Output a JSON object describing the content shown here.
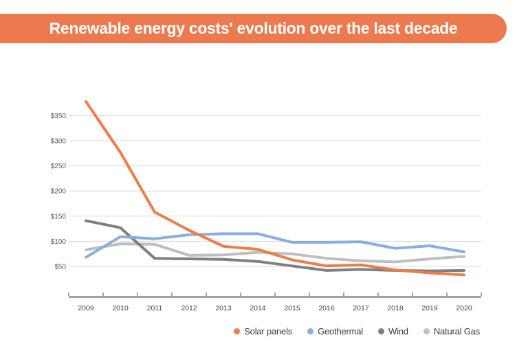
{
  "banner": {
    "title": "Renewable energy costs' evolution over the last decade"
  },
  "colors": {
    "banner_orange": "#ED7A4E",
    "solar": "#ED7D49",
    "geothermal": "#8AAEDE",
    "wind": "#7F7F7F",
    "natural_gas": "#BFBFBF",
    "gridline": "#D9D9D9",
    "axis": "#A3A3A3"
  },
  "chart_data": {
    "type": "line",
    "title": "Renewable energy costs' evolution over the last decade",
    "x": [
      "2009",
      "2010",
      "2011",
      "2012",
      "2013",
      "2014",
      "2015",
      "2016",
      "2017",
      "2018",
      "2019",
      "2020"
    ],
    "y_axis": {
      "tick_labels": [
        "$350",
        "$300",
        "$250",
        "$200",
        "$150",
        "$100",
        "$50"
      ],
      "tick_values": [
        350,
        300,
        250,
        200,
        150,
        100,
        50
      ],
      "unit": "USD"
    },
    "ylim": [
      0,
      400
    ],
    "grid": true,
    "legend_position": "bottom-right",
    "series": [
      {
        "name": "Solar panels",
        "color": "#ED7D49",
        "values": [
          378,
          277,
          158,
          122,
          90,
          84,
          63,
          51,
          53,
          43,
          37,
          33
        ]
      },
      {
        "name": "Geothermal",
        "color": "#8AAEDE",
        "values": [
          68,
          109,
          105,
          113,
          115,
          115,
          98,
          98,
          99,
          86,
          91,
          79
        ]
      },
      {
        "name": "Wind",
        "color": "#7F7F7F",
        "values": [
          141,
          127,
          66,
          65,
          64,
          60,
          51,
          42,
          44,
          42,
          41,
          42
        ]
      },
      {
        "name": "Natural Gas",
        "color": "#BFBFBF",
        "values": [
          83,
          95,
          94,
          72,
          73,
          78,
          75,
          66,
          61,
          59,
          65,
          70
        ]
      }
    ]
  }
}
